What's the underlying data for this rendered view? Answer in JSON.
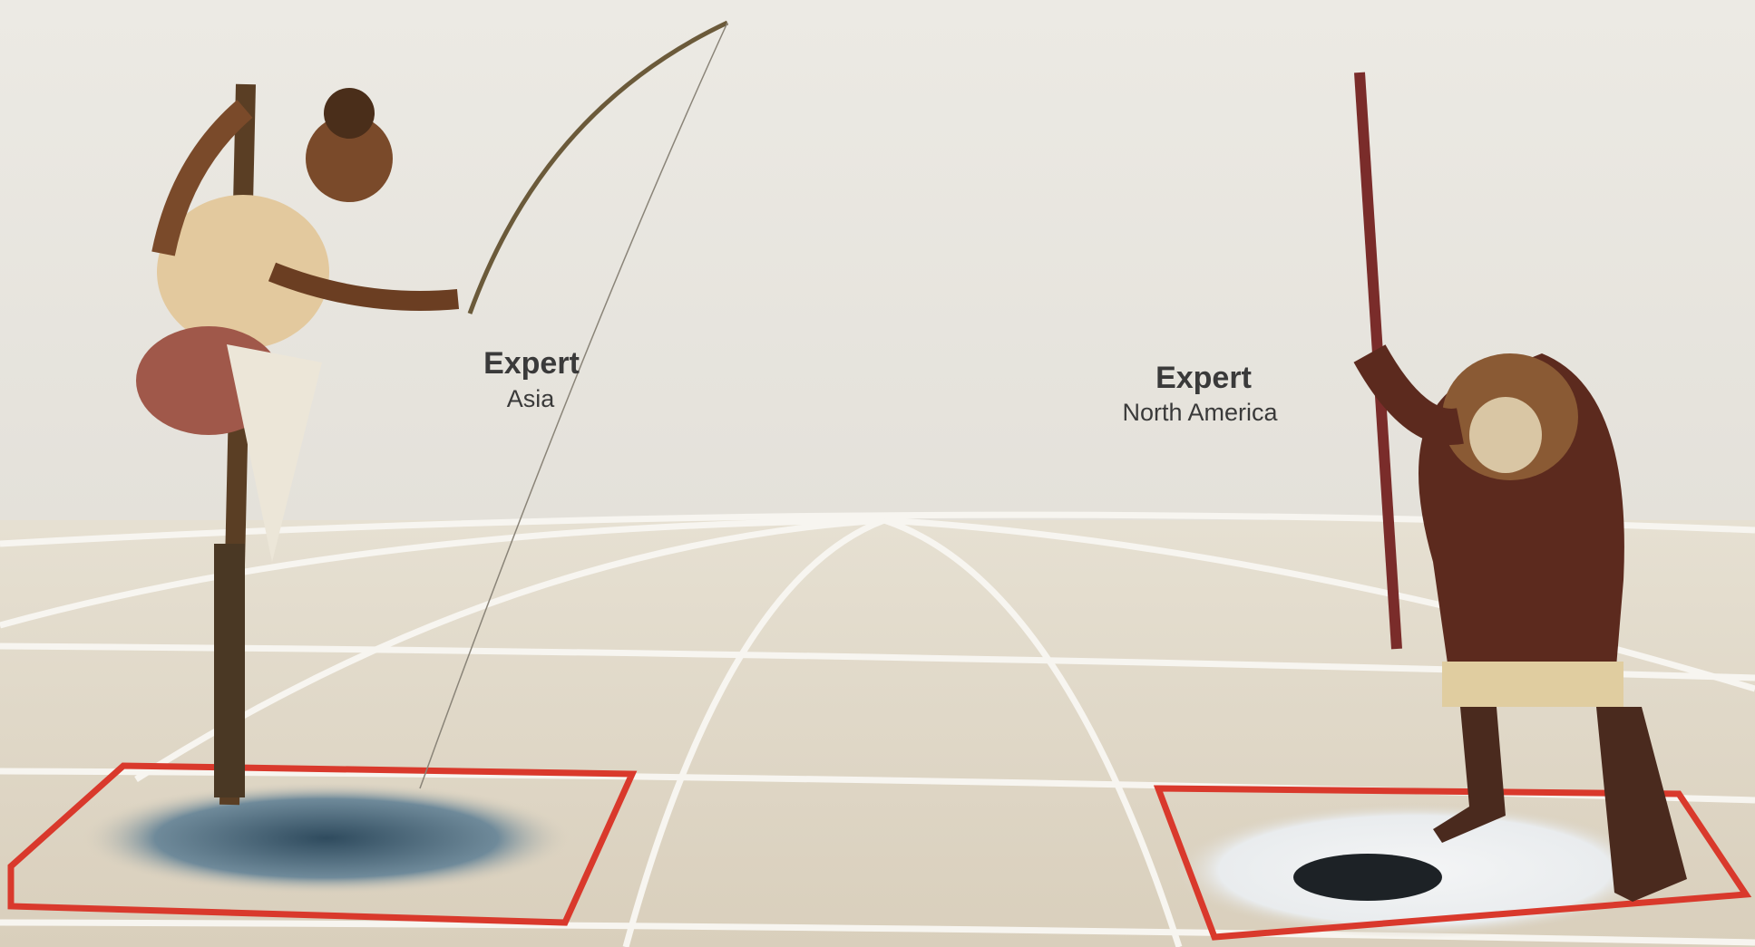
{
  "labels": [
    {
      "title": "Expert",
      "subtitle": "Asia"
    },
    {
      "title": "Expert",
      "subtitle": "North America"
    }
  ]
}
